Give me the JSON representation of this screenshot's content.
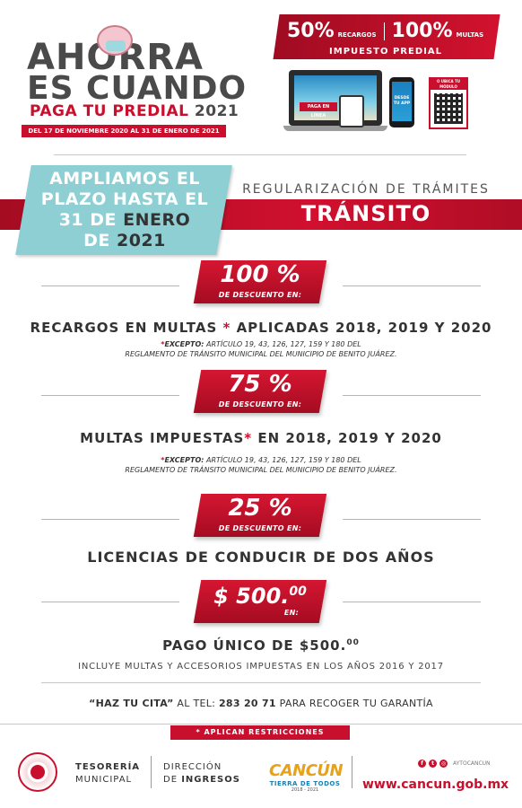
{
  "header": {
    "line1": "AHORRA",
    "line2": "ES CUANDO",
    "sub": "PAGA TU PREDIAL",
    "year": "2021",
    "dates": "DEL 17 DE NOVIEMBRE 2020 AL 31 DE ENERO DE 2021"
  },
  "promo": {
    "pct1": "50%",
    "label1": "RECARGOS",
    "pct2": "100%",
    "label2": "MULTAS",
    "subtitle": "IMPUESTO PREDIAL",
    "laptop_button": "PAGA EN LÍNEA",
    "phone_text": "DESDE TU APP",
    "qr_label": "O UBICA TU MÓDULO"
  },
  "extension": {
    "l1": "AMPLIAMOS EL",
    "l2": "PLAZO HASTA EL",
    "l3a": "31 DE ",
    "l3b": "ENERO",
    "l4a": "DE ",
    "l4b": "2021",
    "reg": "REGULARIZACIÓN DE TRÁMITES",
    "title": "TRÁNSITO"
  },
  "items": [
    {
      "pct": "100 %",
      "desc": "DE DESCUENTO EN:",
      "head_a": "RECARGOS EN MULTAS ",
      "ast": "*",
      "head_b": " APLICADAS 2018, 2019 Y 2020",
      "note_lead": "EXCEPTO:",
      "note1": " ARTÍCULO 19, 43, 126, 127, 159 Y 180  DEL",
      "note2": "REGLAMENTO DE TRÁNSITO MUNICIPAL DEL MUNICIPIO DE BENITO JUÁREZ."
    },
    {
      "pct": "75 %",
      "desc": "DE DESCUENTO EN:",
      "head_a": "MULTAS IMPUESTAS",
      "ast": "*",
      "head_b": " EN 2018, 2019 Y 2020",
      "note_lead": "EXCEPTO:",
      "note1": " ARTÍCULO 19, 43, 126, 127, 159 Y 180  DEL",
      "note2": "REGLAMENTO DE TRÁNSITO MUNICIPAL DEL MUNICIPIO DE BENITO JUÁREZ."
    },
    {
      "pct": "25 %",
      "desc": "DE DESCUENTO EN:",
      "head": "LICENCIAS DE CONDUCIR DE DOS AÑOS"
    },
    {
      "price": "$ 500.",
      "cents": "00",
      "en": "EN:",
      "head": "PAGO ÚNICO DE $500.",
      "head_cents": "00",
      "incluye": "INCLUYE MULTAS Y ACCESORIOS IMPUESTAS EN LOS AÑOS 2016 Y 2017"
    }
  ],
  "cita": {
    "bold": "“HAZ TU CITA”",
    "pre": " AL TEL: ",
    "tel": "283 20 71",
    "post": " PARA RECOGER TU GARANTÍA"
  },
  "restricciones": "* APLICAN RESTRICCIONES",
  "footer": {
    "tes1": "TESORERÍA",
    "tes2": "MUNICIPAL",
    "dir1": "DIRECCIÓN",
    "dir2a": "DE ",
    "dir2b": "INGRESOS",
    "cancun": "CANCÚN",
    "tierra": "TIERRA DE TODOS",
    "years": "2018 - 2021",
    "handle": "AYTOCANCUN",
    "web": "www.cancun.gob.mx"
  }
}
